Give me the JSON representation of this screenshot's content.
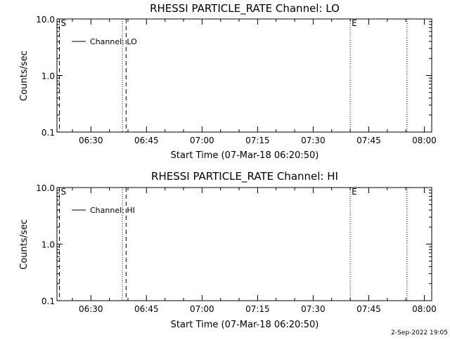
{
  "chart_data": [
    {
      "type": "line",
      "title": "RHESSI PARTICLE_RATE Channel: LO",
      "xlabel": "Start Time (07-Mar-18 06:20:50)",
      "ylabel": "Counts/sec",
      "yscale": "log",
      "ylim": [
        0.1,
        10.0
      ],
      "yticks": [
        "10.0",
        "1.0",
        "0.1"
      ],
      "xlim": [
        "06:20:50",
        "08:02:00"
      ],
      "xticks": [
        "06:30",
        "06:45",
        "07:00",
        "07:15",
        "07:30",
        "07:45",
        "08:00"
      ],
      "legend": {
        "position": "top-left",
        "entries": [
          "Channel: LO"
        ]
      },
      "series": [
        {
          "name": "Channel: LO",
          "x": [],
          "y": []
        }
      ],
      "vlines": [
        {
          "time": "06:21:30",
          "style": "dashed",
          "label": "S"
        },
        {
          "time": "06:38:30",
          "style": "dotted",
          "label": ""
        },
        {
          "time": "06:39:30",
          "style": "dashed",
          "label": ""
        },
        {
          "time": "07:40:00",
          "style": "dotted",
          "label": "E"
        },
        {
          "time": "07:55:20",
          "style": "dotted",
          "label": ""
        }
      ]
    },
    {
      "type": "line",
      "title": "RHESSI PARTICLE_RATE Channel: HI",
      "xlabel": "Start Time (07-Mar-18 06:20:50)",
      "ylabel": "Counts/sec",
      "yscale": "log",
      "ylim": [
        0.1,
        10.0
      ],
      "yticks": [
        "10.0",
        "1.0",
        "0.1"
      ],
      "xlim": [
        "06:20:50",
        "08:02:00"
      ],
      "xticks": [
        "06:30",
        "06:45",
        "07:00",
        "07:15",
        "07:30",
        "07:45",
        "08:00"
      ],
      "legend": {
        "position": "top-left",
        "entries": [
          "Channel: HI"
        ]
      },
      "series": [
        {
          "name": "Channel: HI",
          "x": [],
          "y": []
        }
      ],
      "vlines": [
        {
          "time": "06:21:30",
          "style": "dashed",
          "label": "S"
        },
        {
          "time": "06:38:30",
          "style": "dotted",
          "label": ""
        },
        {
          "time": "06:39:30",
          "style": "dashed",
          "label": ""
        },
        {
          "time": "07:40:00",
          "style": "dotted",
          "label": "E"
        },
        {
          "time": "07:55:20",
          "style": "dotted",
          "label": ""
        }
      ]
    }
  ],
  "footer": {
    "timestamp": "2-Sep-2022 19:05"
  },
  "colors": {
    "background": "#ffffff",
    "foreground": "#000000"
  }
}
